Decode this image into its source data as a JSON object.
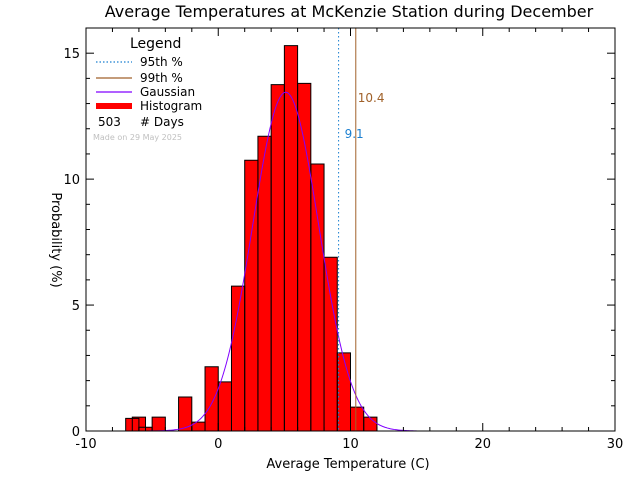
{
  "chart_data": {
    "type": "bar",
    "title": "Average Temperatures at McKenzie Station during December",
    "xlabel": "Average Temperature (C)",
    "ylabel": "Probability  (%)",
    "xlim": [
      -10,
      30
    ],
    "ylim": [
      0,
      16
    ],
    "x_ticks": [
      -10,
      0,
      10,
      20,
      30
    ],
    "y_ticks": [
      0,
      5,
      10,
      15
    ],
    "bin_width": 1,
    "bins": [
      {
        "start": -7,
        "value": 0.5
      },
      {
        "start": -6.5,
        "value": 0.55
      },
      {
        "start": -6,
        "value": 0.15
      },
      {
        "start": -5,
        "value": 0.55
      },
      {
        "start": -3,
        "value": 1.35
      },
      {
        "start": -2,
        "value": 0.35
      },
      {
        "start": -1,
        "value": 2.55
      },
      {
        "start": 0,
        "value": 1.95
      },
      {
        "start": 1,
        "value": 5.75
      },
      {
        "start": 2,
        "value": 10.75
      },
      {
        "start": 3,
        "value": 11.7
      },
      {
        "start": 4,
        "value": 13.75
      },
      {
        "start": 5,
        "value": 15.3
      },
      {
        "start": 6,
        "value": 13.8
      },
      {
        "start": 7,
        "value": 10.6
      },
      {
        "start": 8,
        "value": 6.9
      },
      {
        "start": 9,
        "value": 3.1
      },
      {
        "start": 10,
        "value": 0.95
      },
      {
        "start": 11,
        "value": 0.55
      }
    ],
    "gaussian": {
      "mean": 5.1,
      "sigma": 2.5,
      "peak": 13.45
    },
    "percentiles": {
      "p95": 9.1,
      "p99": 10.4
    },
    "colors": {
      "histogram": "#ff0000",
      "gaussian": "#8000ff",
      "p95": "#1a7fd0",
      "p99": "#a0612a"
    },
    "legend": {
      "title": "Legend",
      "entries": [
        {
          "label": "95th %",
          "style": "dotted",
          "color": "#1a7fd0"
        },
        {
          "label": "99th %",
          "style": "solid",
          "color": "#a0612a"
        },
        {
          "label": "Gaussian",
          "style": "solid",
          "color": "#8000ff"
        },
        {
          "label": "Histogram",
          "style": "thick",
          "color": "#ff0000"
        }
      ],
      "days_count": "503",
      "days_label": "# Days",
      "made_on": "Made on 29 May 2025",
      "placement": "top-left"
    }
  }
}
